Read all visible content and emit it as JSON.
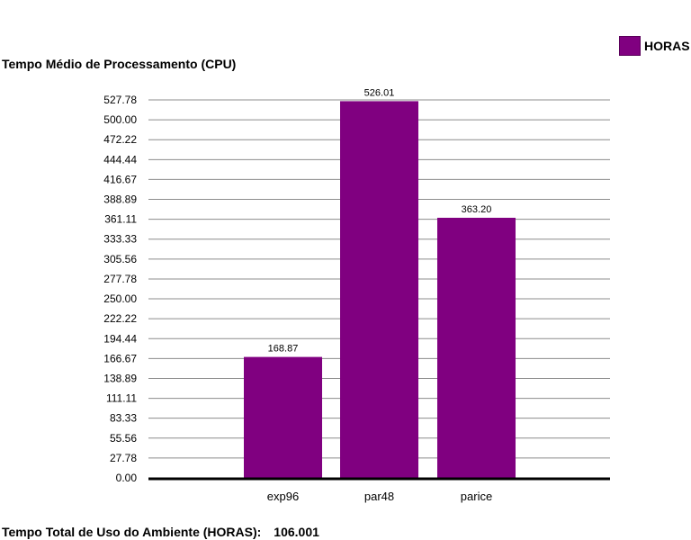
{
  "chart_data": {
    "type": "bar",
    "title": "Tempo Médio de Processamento (CPU)",
    "categories": [
      "exp96",
      "par48",
      "parice"
    ],
    "series": [
      {
        "name": "HORAS",
        "values": [
          168.87,
          526.01,
          363.2
        ]
      }
    ],
    "value_labels": [
      "168.87",
      "526.01",
      "363.20"
    ],
    "y_ticks": [
      "0.00",
      "27.78",
      "55.56",
      "83.33",
      "111.11",
      "138.89",
      "166.67",
      "194.44",
      "222.22",
      "250.00",
      "277.78",
      "305.56",
      "333.33",
      "361.11",
      "388.89",
      "416.67",
      "444.44",
      "472.22",
      "500.00",
      "527.78"
    ],
    "ylim": [
      0,
      527.78
    ],
    "grid": true,
    "legend_position": "top-right",
    "bar_color": "#800080"
  },
  "footer": {
    "label": "Tempo Total de Uso do Ambiente (HORAS):",
    "value": "106.001"
  }
}
